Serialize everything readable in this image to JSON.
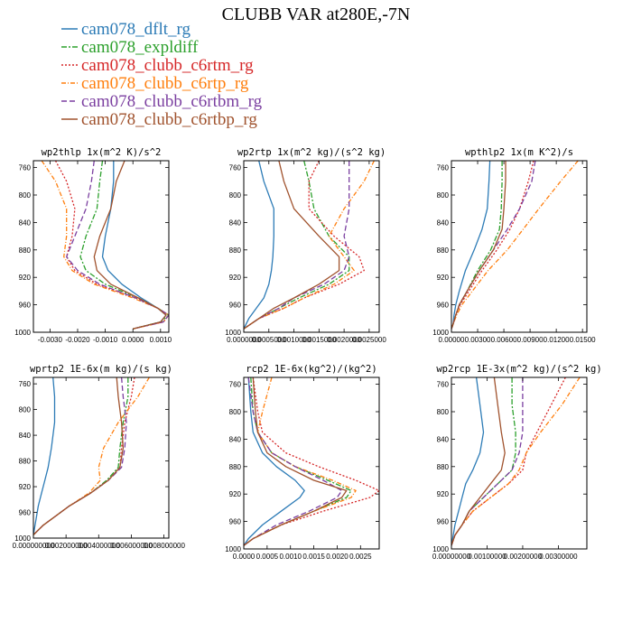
{
  "title": "CLUBB VAR at280E,-7N",
  "legend": [
    {
      "name": "cam078_dflt_rg",
      "color": "#2c7bb6",
      "dash": ""
    },
    {
      "name": "cam078_expldiff",
      "color": "#2ca02c",
      "dash": "6,2,2,2"
    },
    {
      "name": "cam078_clubb_c6rtm_rg",
      "color": "#d62728",
      "dash": "2,2"
    },
    {
      "name": "cam078_clubb_c6rtp_rg",
      "color": "#ff7f0e",
      "dash": "5,2,1,2"
    },
    {
      "name": "cam078_clubb_c6rtbm_rg",
      "color": "#7b3fa0",
      "dash": "6,3"
    },
    {
      "name": "cam078_clubb_c6rtbp_rg",
      "color": "#a0522d",
      "dash": ""
    }
  ],
  "chart_data": [
    {
      "type": "line",
      "title": "wp2thlp  1x(m^2 K)/s^2",
      "xlim": [
        -0.0036,
        0.0013
      ],
      "ylim": [
        1000,
        750
      ],
      "xticks": [
        -0.003,
        -0.002,
        -0.001,
        0.0,
        0.001
      ],
      "xtick_labels": [
        "-0.0030",
        "-0.0020",
        "-0.0010",
        "0.0000",
        "0.0010"
      ],
      "yticks": [
        760,
        800,
        840,
        880,
        920,
        960,
        1000
      ],
      "y": [
        750,
        780,
        820,
        860,
        890,
        910,
        930,
        950,
        965,
        975,
        985,
        995
      ],
      "series": [
        {
          "name": "cam078_dflt_rg",
          "values": [
            -0.0007,
            -0.0007,
            -0.0008,
            -0.001,
            -0.0011,
            -0.0009,
            -0.0004,
            0.0003,
            0.0009,
            0.0012,
            0.001,
            0.0
          ]
        },
        {
          "name": "cam078_expldiff",
          "values": [
            -0.0011,
            -0.0012,
            -0.0013,
            -0.0017,
            -0.0019,
            -0.0017,
            -0.001,
            0.0002,
            0.0009,
            0.0013,
            0.001,
            0.0
          ]
        },
        {
          "name": "cam078_clubb_c6rtm_rg",
          "values": [
            -0.0028,
            -0.0024,
            -0.0021,
            -0.0022,
            -0.0024,
            -0.0021,
            -0.0013,
            0.0001,
            0.0009,
            0.0013,
            0.0011,
            0.0
          ]
        },
        {
          "name": "cam078_clubb_c6rtp_rg",
          "values": [
            -0.0033,
            -0.0028,
            -0.0024,
            -0.0024,
            -0.0025,
            -0.0022,
            -0.0014,
            0.0,
            0.0009,
            0.0013,
            0.0011,
            0.0
          ]
        },
        {
          "name": "cam078_clubb_c6rtbm_rg",
          "values": [
            -0.0014,
            -0.0015,
            -0.0017,
            -0.0021,
            -0.0024,
            -0.002,
            -0.0012,
            0.0001,
            0.0009,
            0.0013,
            0.0011,
            0.0
          ]
        },
        {
          "name": "cam078_clubb_c6rtbp_rg",
          "values": [
            -0.0003,
            -0.0006,
            -0.0008,
            -0.0012,
            -0.0014,
            -0.0013,
            -0.0008,
            0.0002,
            0.0009,
            0.0012,
            0.001,
            0.0
          ]
        }
      ]
    },
    {
      "type": "line",
      "title": "wp2rtp  1x(m^2 kg)/(s^2 kg)",
      "xlim": [
        0.0,
        0.0027
      ],
      "ylim": [
        1000,
        750
      ],
      "xticks": [
        0.0,
        0.0005,
        0.001,
        0.0015,
        0.002,
        0.0025
      ],
      "xtick_labels": [
        "0.0000000",
        "0.0005000",
        "0.0010000",
        "0.0015000",
        "0.0020000",
        "0.0025000"
      ],
      "yticks": [
        760,
        800,
        840,
        880,
        920,
        960,
        1000
      ],
      "y": [
        750,
        780,
        820,
        860,
        890,
        910,
        930,
        950,
        965,
        980,
        995
      ],
      "series": [
        {
          "name": "cam078_dflt_rg",
          "values": [
            0.0003,
            0.0004,
            0.0006,
            0.0006,
            0.00058,
            0.00055,
            0.0005,
            0.0004,
            0.00025,
            0.0001,
            0.0
          ]
        },
        {
          "name": "cam078_expldiff",
          "values": [
            0.0012,
            0.0013,
            0.0014,
            0.0017,
            0.0021,
            0.0021,
            0.0017,
            0.0011,
            0.0007,
            0.0003,
            0.0
          ]
        },
        {
          "name": "cam078_clubb_c6rtm_rg",
          "values": [
            0.0015,
            0.0013,
            0.0013,
            0.0018,
            0.0023,
            0.0024,
            0.0019,
            0.0012,
            0.0008,
            0.0003,
            0.0
          ]
        },
        {
          "name": "cam078_clubb_c6rtp_rg",
          "values": [
            0.0026,
            0.0024,
            0.002,
            0.0017,
            0.002,
            0.0022,
            0.0018,
            0.0012,
            0.0008,
            0.0003,
            0.0
          ]
        },
        {
          "name": "cam078_clubb_c6rtbm_rg",
          "values": [
            0.0021,
            0.0021,
            0.0021,
            0.002,
            0.0021,
            0.002,
            0.0016,
            0.001,
            0.0007,
            0.0003,
            0.0
          ]
        },
        {
          "name": "cam078_clubb_c6rtbp_rg",
          "values": [
            0.0007,
            0.0008,
            0.001,
            0.0015,
            0.0019,
            0.0019,
            0.0015,
            0.001,
            0.0006,
            0.0003,
            0.0
          ]
        }
      ]
    },
    {
      "type": "line",
      "title": "wpthlp2  1x(m K^2)/s",
      "xlim": [
        0.0,
        0.0155
      ],
      "ylim": [
        1000,
        750
      ],
      "xticks": [
        0.0,
        0.003,
        0.006,
        0.009,
        0.012,
        0.015
      ],
      "xtick_labels": [
        "0.00000",
        "0.00300",
        "0.00600",
        "0.00900",
        "0.01200",
        "0.01500"
      ],
      "yticks": [
        760,
        800,
        840,
        880,
        920,
        960,
        1000
      ],
      "y": [
        750,
        780,
        820,
        850,
        880,
        910,
        940,
        960,
        975,
        988,
        995
      ],
      "series": [
        {
          "name": "cam078_dflt_rg",
          "values": [
            0.0044,
            0.0043,
            0.0041,
            0.0035,
            0.0026,
            0.0016,
            0.0009,
            0.0005,
            0.0003,
            0.0002,
            0.0
          ]
        },
        {
          "name": "cam078_expldiff",
          "values": [
            0.0058,
            0.0058,
            0.0057,
            0.0055,
            0.0045,
            0.003,
            0.0018,
            0.0009,
            0.0005,
            0.0002,
            0.0
          ]
        },
        {
          "name": "cam078_clubb_c6rtm_rg",
          "values": [
            0.0094,
            0.0088,
            0.0078,
            0.0067,
            0.0052,
            0.0035,
            0.002,
            0.001,
            0.0005,
            0.0002,
            0.0
          ]
        },
        {
          "name": "cam078_clubb_c6rtp_rg",
          "values": [
            0.0145,
            0.0125,
            0.01,
            0.0082,
            0.0064,
            0.0042,
            0.0024,
            0.0012,
            0.0006,
            0.0002,
            0.0
          ]
        },
        {
          "name": "cam078_clubb_c6rtbm_rg",
          "values": [
            0.0096,
            0.0092,
            0.0078,
            0.0064,
            0.0048,
            0.0032,
            0.0018,
            0.0009,
            0.0005,
            0.0002,
            0.0
          ]
        },
        {
          "name": "cam078_clubb_c6rtbp_rg",
          "values": [
            0.0062,
            0.0062,
            0.006,
            0.0058,
            0.0048,
            0.0032,
            0.0018,
            0.0009,
            0.0005,
            0.0002,
            0.0
          ]
        }
      ]
    },
    {
      "type": "line",
      "title": "wprtp2  1E-6x(m kg)/(s kg)",
      "xlim": [
        0.0,
        0.0083
      ],
      "ylim": [
        1000,
        750
      ],
      "xticks": [
        0.0,
        0.002,
        0.004,
        0.006,
        0.008
      ],
      "xtick_labels": [
        "0.000000000",
        "0.002000000",
        "0.004000000",
        "0.006000000",
        "0.008000000"
      ],
      "yticks": [
        760,
        800,
        840,
        880,
        920,
        960,
        1000
      ],
      "y": [
        750,
        780,
        820,
        860,
        890,
        910,
        930,
        950,
        965,
        980,
        995
      ],
      "series": [
        {
          "name": "cam078_dflt_rg",
          "values": [
            0.0012,
            0.0013,
            0.0013,
            0.0011,
            0.0009,
            0.0007,
            0.0005,
            0.0003,
            0.0002,
            0.0001,
            0.0
          ]
        },
        {
          "name": "cam078_expldiff",
          "values": [
            0.0058,
            0.0058,
            0.0055,
            0.0053,
            0.0052,
            0.0045,
            0.0035,
            0.0022,
            0.0014,
            0.0006,
            0.0
          ]
        },
        {
          "name": "cam078_clubb_c6rtm_rg",
          "values": [
            0.0062,
            0.006,
            0.0056,
            0.0054,
            0.0053,
            0.0046,
            0.0035,
            0.0022,
            0.0014,
            0.0006,
            0.0
          ]
        },
        {
          "name": "cam078_clubb_c6rtp_rg",
          "values": [
            0.0071,
            0.0064,
            0.0052,
            0.0043,
            0.004,
            0.0041,
            0.0034,
            0.0022,
            0.0014,
            0.0006,
            0.0
          ]
        },
        {
          "name": "cam078_clubb_c6rtbm_rg",
          "values": [
            0.0054,
            0.0055,
            0.0057,
            0.0056,
            0.0054,
            0.0046,
            0.0035,
            0.0022,
            0.0014,
            0.0006,
            0.0
          ]
        },
        {
          "name": "cam078_clubb_c6rtbp_rg",
          "values": [
            0.0051,
            0.0052,
            0.0054,
            0.0055,
            0.0053,
            0.0046,
            0.0035,
            0.0022,
            0.0014,
            0.0006,
            0.0
          ]
        }
      ]
    },
    {
      "type": "line",
      "title": "rcp2  1E-6x(kg^2)/(kg^2)",
      "xlim": [
        0.0,
        0.0029
      ],
      "ylim": [
        1000,
        750
      ],
      "xticks": [
        0.0,
        0.0005,
        0.001,
        0.0015,
        0.002,
        0.0025
      ],
      "xtick_labels": [
        "0.0000",
        "0.0005",
        "0.0010",
        "0.0015",
        "0.0020",
        "0.0025"
      ],
      "yticks": [
        760,
        800,
        840,
        880,
        920,
        960,
        1000
      ],
      "y": [
        750,
        800,
        830,
        860,
        880,
        900,
        915,
        925,
        945,
        965,
        985,
        995
      ],
      "series": [
        {
          "name": "cam078_dflt_rg",
          "values": [
            0.0001,
            0.00015,
            0.0002,
            0.0004,
            0.0007,
            0.0011,
            0.0013,
            0.0012,
            0.0008,
            0.0004,
            0.0001,
            0.0
          ]
        },
        {
          "name": "cam078_expldiff",
          "values": [
            0.00015,
            0.0002,
            0.0003,
            0.0006,
            0.0011,
            0.0018,
            0.0023,
            0.0022,
            0.0015,
            0.0008,
            0.0002,
            0.0
          ]
        },
        {
          "name": "cam078_clubb_c6rtm_rg",
          "values": [
            0.0002,
            0.0003,
            0.0004,
            0.0009,
            0.0016,
            0.0024,
            0.0029,
            0.0027,
            0.0017,
            0.0008,
            0.0002,
            0.0
          ]
        },
        {
          "name": "cam078_clubb_c6rtp_rg",
          "values": [
            0.0006,
            0.0004,
            0.0003,
            0.0006,
            0.0011,
            0.0019,
            0.0024,
            0.0023,
            0.0015,
            0.0008,
            0.0002,
            0.0
          ]
        },
        {
          "name": "cam078_clubb_c6rtbm_rg",
          "values": [
            0.0001,
            0.0002,
            0.0003,
            0.0006,
            0.0011,
            0.0017,
            0.0021,
            0.002,
            0.0014,
            0.0007,
            0.0002,
            0.0
          ]
        },
        {
          "name": "cam078_clubb_c6rtbp_rg",
          "values": [
            0.0002,
            0.00025,
            0.0003,
            0.0005,
            0.0009,
            0.0015,
            0.0022,
            0.0021,
            0.0015,
            0.0008,
            0.0002,
            0.0
          ]
        }
      ]
    },
    {
      "type": "line",
      "title": "wp2rcp  1E-3x(m^2 kg)/(s^2 kg)",
      "xlim": [
        0.0,
        0.0038
      ],
      "ylim": [
        1000,
        750
      ],
      "xticks": [
        0.0,
        0.001,
        0.002,
        0.003
      ],
      "xtick_labels": [
        "0.00000000",
        "0.00100000",
        "0.00200000",
        "0.00300000"
      ],
      "yticks": [
        760,
        800,
        840,
        880,
        920,
        960,
        1000
      ],
      "y": [
        750,
        790,
        830,
        860,
        885,
        905,
        925,
        945,
        965,
        980,
        995
      ],
      "series": [
        {
          "name": "cam078_dflt_rg",
          "values": [
            0.0007,
            0.0008,
            0.0009,
            0.0008,
            0.0006,
            0.0004,
            0.0003,
            0.0002,
            0.0001,
            5e-05,
            0.0
          ]
        },
        {
          "name": "cam078_expldiff",
          "values": [
            0.0017,
            0.0017,
            0.0018,
            0.0018,
            0.0017,
            0.0013,
            0.0009,
            0.0005,
            0.0003,
            0.0001,
            0.0
          ]
        },
        {
          "name": "cam078_clubb_c6rtm_rg",
          "values": [
            0.0032,
            0.0028,
            0.0024,
            0.0021,
            0.002,
            0.0016,
            0.0011,
            0.0006,
            0.0003,
            0.0001,
            0.0
          ]
        },
        {
          "name": "cam078_clubb_c6rtp_rg",
          "values": [
            0.0036,
            0.0031,
            0.0025,
            0.0021,
            0.0019,
            0.0016,
            0.0011,
            0.0006,
            0.0003,
            0.0001,
            0.0
          ]
        },
        {
          "name": "cam078_clubb_c6rtbm_rg",
          "values": [
            0.002,
            0.002,
            0.002,
            0.0019,
            0.0017,
            0.0013,
            0.0009,
            0.0005,
            0.0003,
            0.0001,
            0.0
          ]
        },
        {
          "name": "cam078_clubb_c6rtbp_rg",
          "values": [
            0.0012,
            0.0013,
            0.0014,
            0.0015,
            0.0014,
            0.0011,
            0.0008,
            0.0005,
            0.0003,
            0.0001,
            0.0
          ]
        }
      ]
    }
  ]
}
